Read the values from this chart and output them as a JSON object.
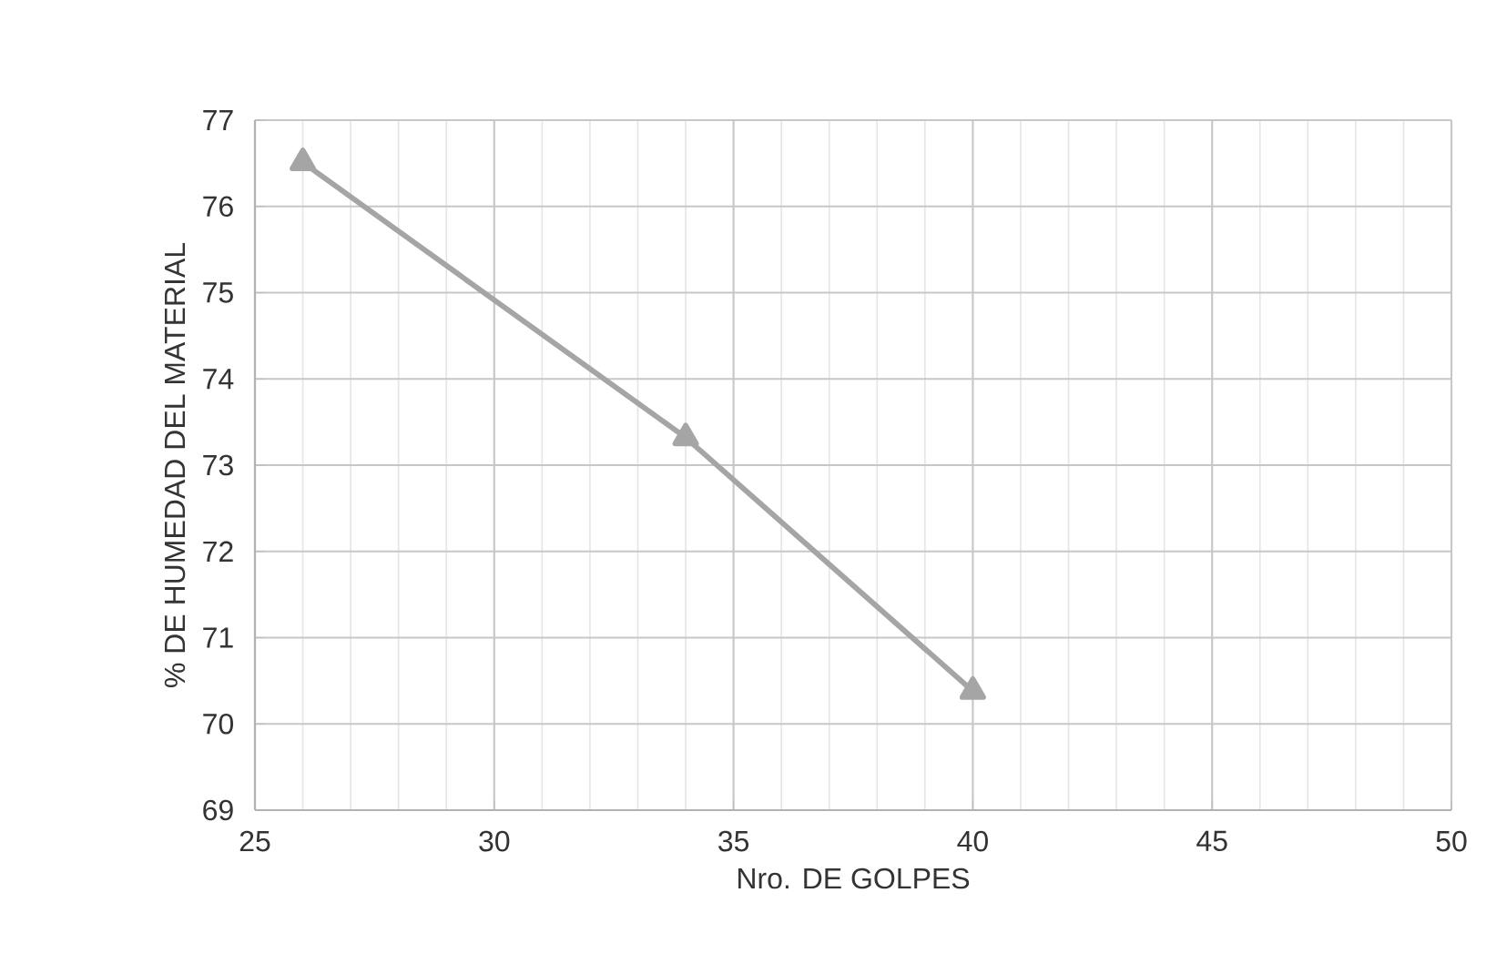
{
  "chart_data": {
    "type": "line",
    "xlabel": "Nro. DE GOLPES",
    "ylabel": "% DE HUMEDAD DEL MATERIAL",
    "x": [
      26,
      34,
      40
    ],
    "series": [
      {
        "color": "#a5a5a5",
        "values": [
          76.51,
          73.32,
          70.38
        ]
      }
    ],
    "xlim": [
      25,
      50
    ],
    "xticks": [
      25,
      30,
      35,
      40,
      45,
      50
    ],
    "ylim": [
      69,
      77
    ],
    "yticks": [
      69,
      70,
      71,
      72,
      73,
      74,
      75,
      76,
      77
    ],
    "grid": true,
    "marker": "triangle",
    "line_style": "solid"
  }
}
